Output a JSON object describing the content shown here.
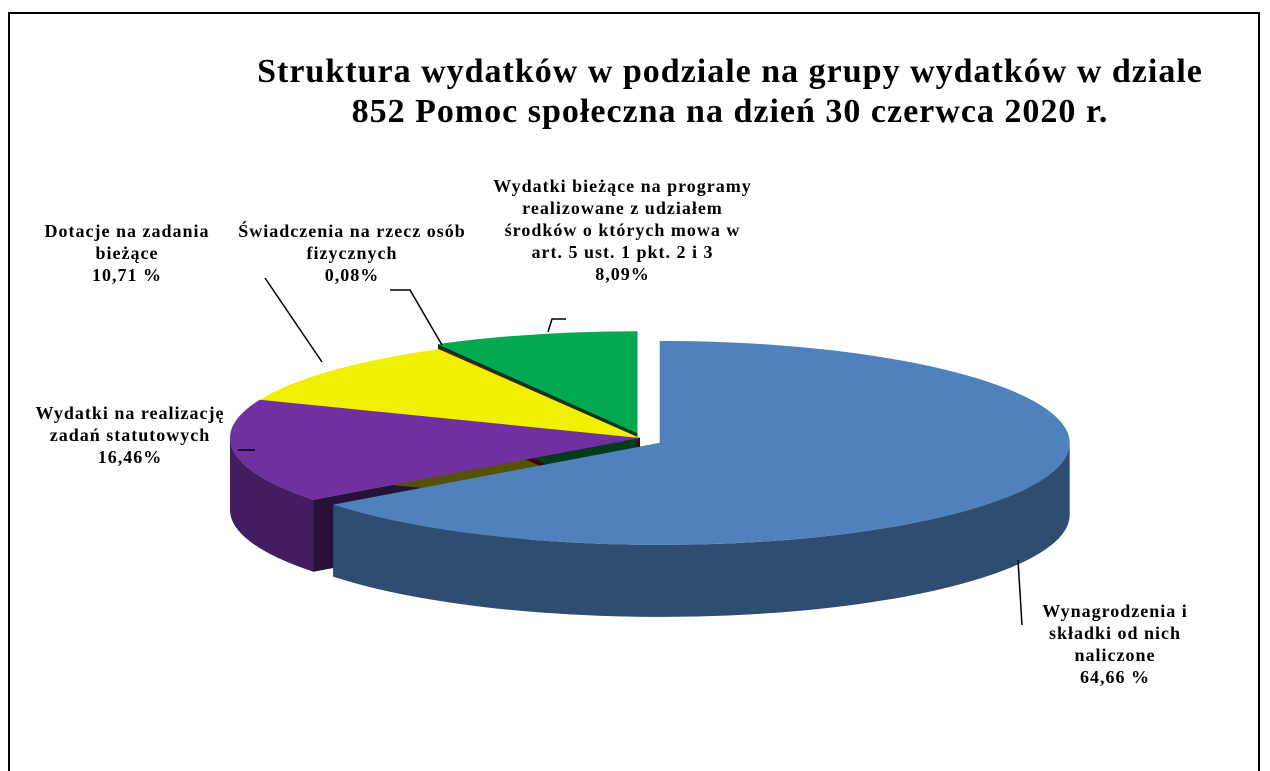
{
  "chart_data": {
    "type": "pie3d",
    "title": "Struktura wydatków w podziale na grupy wydatków w dziale 852 Pomoc społeczna na dzień 30 czerwca 2020 r.",
    "categories": [
      "Wynagrodzenia i składki od nich naliczone",
      "Wydatki na realizację zadań statutowych",
      "Dotacje na zadania bieżące",
      "Świadczenia na rzecz osób fizycznych",
      "Wydatki bieżące na programy realizowane z udziałem środków o których mowa w art. 5 ust. 1 pkt. 2 i 3"
    ],
    "values": [
      64.66,
      16.46,
      10.71,
      0.08,
      8.09
    ],
    "value_labels": [
      "64,66 %",
      "16,46%",
      "10,71 %",
      "0,08%",
      "8,09%"
    ],
    "colors": [
      "#4f81bd",
      "#7030a0",
      "#f0f000",
      "#c00000",
      "#00a84f"
    ]
  }
}
